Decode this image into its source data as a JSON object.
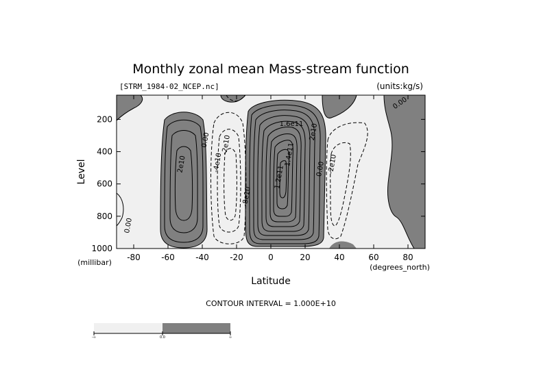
{
  "chart_data": {
    "type": "contour",
    "title": "Monthly zonal mean Mass-stream function",
    "subtitle_left": "[STRM_1984-02_NCEP.nc]",
    "subtitle_right": "(units:kg/s)",
    "xlabel": "Latitude",
    "ylabel": "Level",
    "x_unit": "(degrees_north)",
    "y_unit": "(millibar)",
    "xlim": [
      -90,
      90
    ],
    "ylim": [
      1000,
      50
    ],
    "x_ticks": [
      -80,
      -60,
      -40,
      -20,
      0,
      20,
      40,
      60,
      80
    ],
    "y_ticks": [
      200,
      400,
      600,
      800,
      1000
    ],
    "contour_interval_text": "CONTOUR INTERVAL = 1.000E+10",
    "shading": {
      "negative": "#f0f0f0",
      "positive": "#808080"
    },
    "contour_labels": [
      {
        "text": "2e10",
        "x": -51,
        "y": 480,
        "angle": -80
      },
      {
        "text": "0.00",
        "x": -37,
        "y": 330,
        "angle": -80
      },
      {
        "text": "-2e10",
        "x": -25,
        "y": 360,
        "angle": -80
      },
      {
        "text": "-4e10",
        "x": -30,
        "y": 470,
        "angle": -80
      },
      {
        "text": "-8e10",
        "x": -13,
        "y": 680,
        "angle": -80
      },
      {
        "text": "1.2e11",
        "x": 6,
        "y": 560,
        "angle": -80
      },
      {
        "text": "1.4e11",
        "x": 12,
        "y": 420,
        "angle": -80
      },
      {
        "text": "1.6e11",
        "x": 12,
        "y": 240,
        "angle": 0
      },
      {
        "text": "2e10",
        "x": 26,
        "y": 280,
        "angle": -80
      },
      {
        "text": "0.00",
        "x": 30,
        "y": 510,
        "angle": -80
      },
      {
        "text": "-2e10",
        "x": 37,
        "y": 480,
        "angle": -80
      },
      {
        "text": "0.00",
        "x": 76,
        "y": 110,
        "angle": -35
      },
      {
        "text": "0.00",
        "x": -82,
        "y": 860,
        "angle": -80
      }
    ],
    "colorbar": {
      "levels": [
        "-∞",
        "0.0",
        "∞"
      ],
      "colors": [
        "#f0f0f0",
        "#808080"
      ]
    }
  }
}
